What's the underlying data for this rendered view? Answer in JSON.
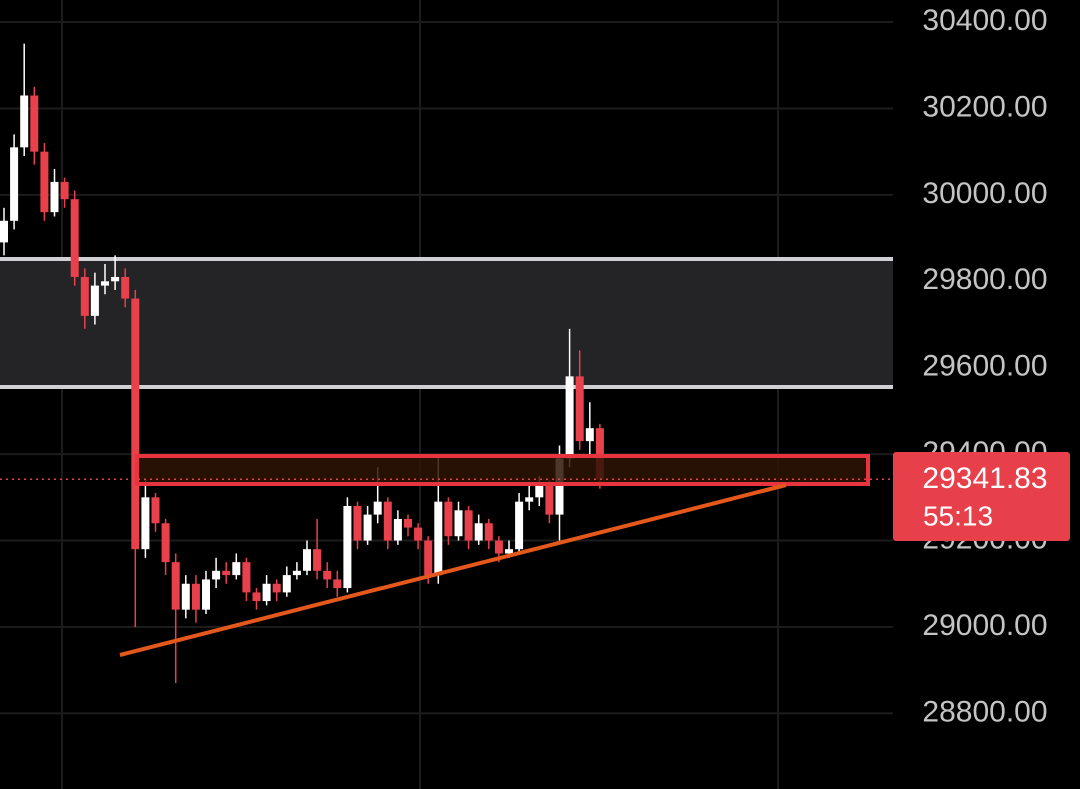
{
  "chart_data": {
    "type": "candlestick",
    "up_color": "#ffffff",
    "down_color": "#e8414c",
    "ylim": [
      28625,
      30451
    ],
    "yticks": [
      {
        "value": 28800,
        "label": "28800.00"
      },
      {
        "value": 29000,
        "label": "29000.00"
      },
      {
        "value": 29200,
        "label": "29200.00"
      },
      {
        "value": 29400,
        "label": "29400.00"
      },
      {
        "value": 29600,
        "label": "29600.00"
      },
      {
        "value": 29800,
        "label": "29800.00"
      },
      {
        "value": 30000,
        "label": "30000.00"
      },
      {
        "value": 30200,
        "label": "30200.00"
      },
      {
        "value": 30400,
        "label": "30400.00"
      }
    ],
    "grid": true,
    "open": [
      29890,
      29940,
      30110,
      30230,
      30100,
      29960,
      30030,
      29990,
      29810,
      29720,
      29790,
      29800,
      29810,
      29760,
      29180,
      29300,
      29240,
      29150,
      29040,
      29100,
      29040,
      29110,
      29130,
      29120,
      29150,
      29080,
      29060,
      29100,
      29080,
      29120,
      29130,
      29180,
      29130,
      29110,
      29090,
      29280,
      29200,
      29260,
      29290,
      29200,
      29250,
      29230,
      29200,
      29120,
      29290,
      29210,
      29270,
      29200,
      29240,
      29200,
      29170,
      29180,
      29290,
      29300,
      29330,
      29260,
      29390,
      29580,
      29430,
      29460
    ],
    "high": [
      29970,
      30140,
      30350,
      30250,
      30120,
      30060,
      30040,
      30010,
      29830,
      29820,
      29840,
      29860,
      29830,
      29780,
      29340,
      29310,
      29250,
      29170,
      29120,
      29120,
      29130,
      29160,
      29150,
      29170,
      29160,
      29090,
      29120,
      29110,
      29140,
      29150,
      29200,
      29250,
      29150,
      29130,
      29300,
      29290,
      29280,
      29370,
      29300,
      29270,
      29260,
      29240,
      29210,
      29400,
      29300,
      29290,
      29280,
      29260,
      29250,
      29210,
      29200,
      29310,
      29330,
      29350,
      29340,
      29420,
      29690,
      29640,
      29520,
      29470
    ],
    "low": [
      29860,
      29920,
      30090,
      30070,
      29940,
      29950,
      29970,
      29790,
      29690,
      29700,
      29770,
      29780,
      29740,
      29000,
      29160,
      29220,
      29120,
      28870,
      29020,
      29010,
      29030,
      29090,
      29100,
      29110,
      29060,
      29040,
      29050,
      29060,
      29070,
      29110,
      29120,
      29110,
      29090,
      29070,
      29080,
      29180,
      29190,
      29240,
      29180,
      29190,
      29210,
      29180,
      29100,
      29100,
      29190,
      29200,
      29180,
      29190,
      29180,
      29150,
      29160,
      29170,
      29270,
      29280,
      29240,
      29200,
      29370,
      29410,
      29400,
      29320
    ],
    "close": [
      29940,
      30110,
      30230,
      30100,
      29960,
      30030,
      29990,
      29810,
      29720,
      29790,
      29800,
      29810,
      29760,
      29180,
      29300,
      29240,
      29150,
      29040,
      29100,
      29040,
      29110,
      29130,
      29120,
      29150,
      29080,
      29060,
      29100,
      29080,
      29120,
      29130,
      29180,
      29130,
      29110,
      29090,
      29280,
      29200,
      29260,
      29290,
      29200,
      29250,
      29230,
      29200,
      29120,
      29290,
      29210,
      29270,
      29200,
      29240,
      29200,
      29170,
      29180,
      29290,
      29300,
      29330,
      29260,
      29390,
      29580,
      29430,
      29460,
      29341.83
    ],
    "last_price": 29341.83,
    "countdown": "55:13"
  }
}
